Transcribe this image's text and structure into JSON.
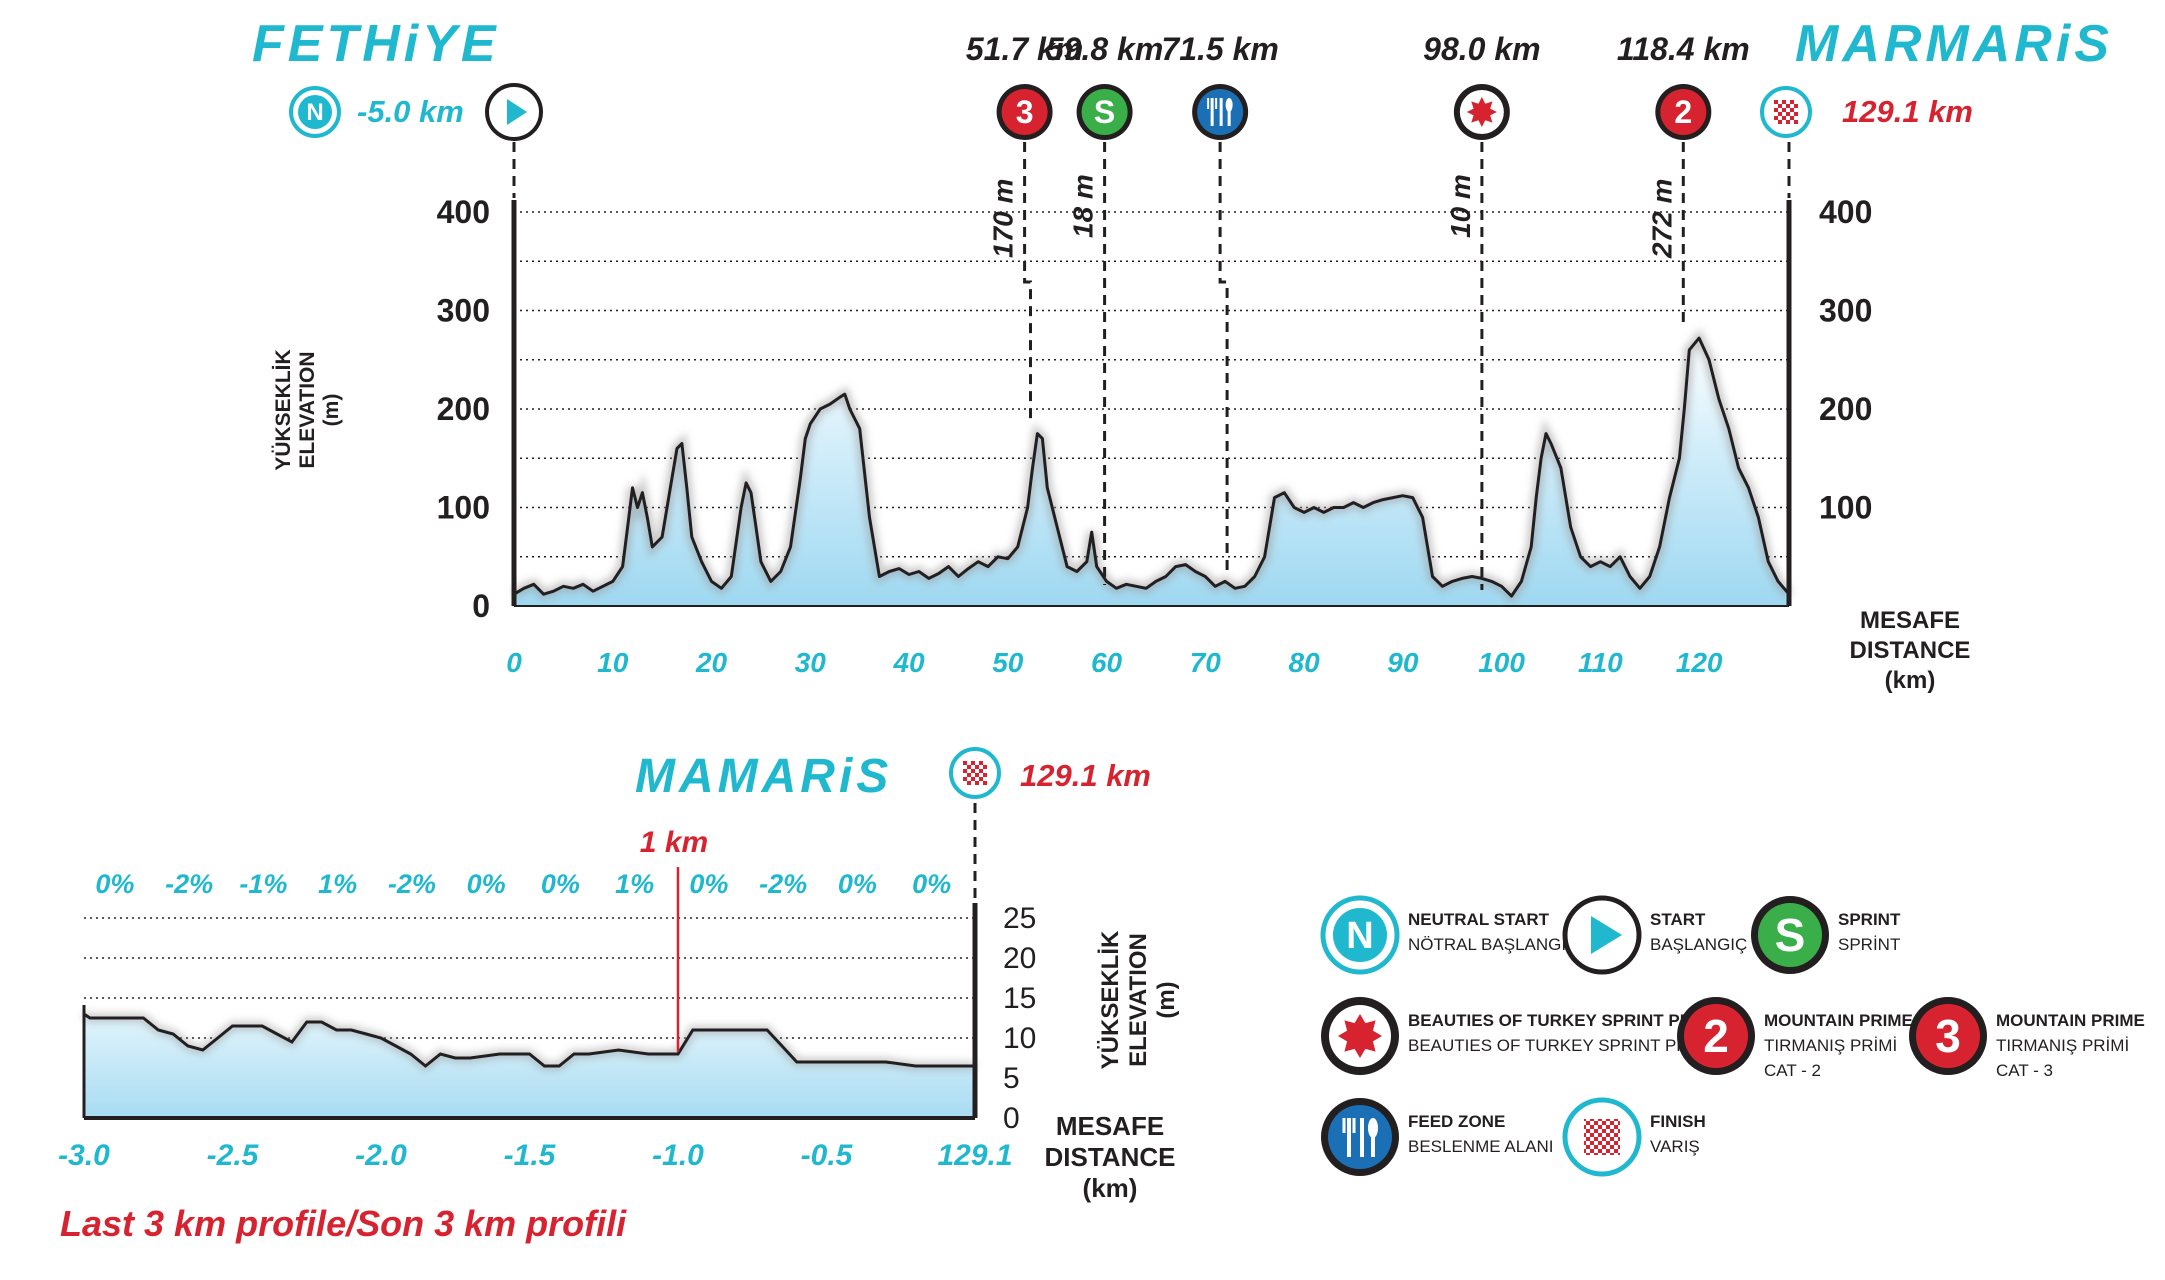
{
  "header": {
    "start_city": "FETHiYE",
    "finish_city": "MARMARiS",
    "neutral_km": "-5.0 km",
    "finish_km": "129.1 km"
  },
  "markers": [
    {
      "km_label": "51.7 km",
      "km": 51.7,
      "icon": "mountain-cat3-icon",
      "symbol": "3",
      "color": "#d7232f",
      "alt_label": "170 m",
      "leader_km": 53,
      "label_x": 43
    },
    {
      "km_label": "59.8 km",
      "km": 59.8,
      "icon": "sprint-icon",
      "symbol": "S",
      "color": "#3aae49",
      "alt_label": "18 m",
      "leader_km": 59.8,
      "label_x": 59.8
    },
    {
      "km_label": "71.5 km",
      "km": 71.5,
      "icon": "feed-zone-icon",
      "symbol": "",
      "color": "#1b6fb5",
      "alt_label": "",
      "leader_km": 72.2,
      "label_x": 76.5
    },
    {
      "km_label": "98.0 km",
      "km": 98.0,
      "icon": "beauties-sprint-icon",
      "symbol": "",
      "color": "#d7232f",
      "alt_label": "10 m",
      "leader_km": 98.0,
      "label_x": 98.0
    },
    {
      "km_label": "118.4 km",
      "km": 118.4,
      "icon": "mountain-cat2-icon",
      "symbol": "2",
      "color": "#d7232f",
      "alt_label": "272 m",
      "leader_km": 118.4,
      "label_x": 118.4
    }
  ],
  "chart_data": [
    {
      "type": "area",
      "ylabel": "YÜKSEKLİK ELEVATION (m)",
      "xlabel": "MESAFE DISTANCE (km)",
      "xlim": [
        0,
        129.1
      ],
      "ylim": [
        0,
        400
      ],
      "x_ticks": [
        "0",
        "10",
        "20",
        "30",
        "40",
        "50",
        "60",
        "70",
        "80",
        "90",
        "100",
        "110",
        "120"
      ],
      "y_ticks": [
        "0",
        "100",
        "200",
        "300",
        "400"
      ],
      "x": [
        0,
        1,
        2,
        3,
        4,
        5,
        6,
        7,
        8,
        9,
        10,
        11,
        11.5,
        12,
        12.5,
        13,
        13.5,
        14,
        15,
        16,
        16.5,
        17,
        17.5,
        18,
        19,
        20,
        21,
        22,
        23,
        23.5,
        24,
        24.5,
        25,
        26,
        27,
        28,
        29,
        29.5,
        30,
        31,
        32,
        33,
        33.5,
        34,
        35,
        36,
        37,
        38,
        39,
        40,
        41,
        42,
        43,
        44,
        45,
        46,
        47,
        48,
        49,
        50,
        51,
        52,
        52.5,
        53,
        53.5,
        54,
        55,
        56,
        57,
        58,
        58.5,
        59,
        60,
        61,
        62,
        63,
        64,
        65,
        66,
        67,
        68,
        69,
        70,
        71,
        72,
        73,
        74,
        75,
        76,
        77,
        78,
        79,
        80,
        81,
        82,
        83,
        84,
        85,
        86,
        87,
        88,
        89,
        90,
        91,
        92,
        93,
        94,
        95,
        96,
        97,
        98,
        99,
        100,
        101,
        102,
        103,
        103.5,
        104,
        104.5,
        105,
        106,
        107,
        108,
        109,
        110,
        111,
        112,
        113,
        114,
        115,
        116,
        117,
        118,
        118.5,
        119,
        120,
        121,
        122,
        123,
        124,
        125,
        126,
        127,
        128,
        129.1
      ],
      "elevation": [
        12,
        18,
        22,
        12,
        15,
        20,
        18,
        22,
        15,
        20,
        25,
        40,
        80,
        120,
        100,
        115,
        90,
        60,
        70,
        130,
        160,
        165,
        120,
        70,
        45,
        25,
        18,
        30,
        100,
        125,
        115,
        80,
        45,
        25,
        35,
        60,
        130,
        170,
        185,
        200,
        205,
        212,
        215,
        200,
        180,
        90,
        30,
        35,
        38,
        32,
        35,
        28,
        33,
        40,
        30,
        38,
        45,
        40,
        50,
        48,
        60,
        100,
        140,
        175,
        170,
        120,
        80,
        40,
        35,
        45,
        75,
        40,
        25,
        18,
        22,
        20,
        18,
        25,
        30,
        40,
        42,
        35,
        30,
        20,
        25,
        18,
        20,
        30,
        50,
        110,
        115,
        100,
        95,
        100,
        95,
        100,
        100,
        105,
        100,
        105,
        108,
        110,
        112,
        110,
        90,
        30,
        20,
        25,
        28,
        30,
        28,
        25,
        20,
        10,
        25,
        60,
        110,
        150,
        175,
        165,
        140,
        80,
        50,
        40,
        45,
        40,
        50,
        30,
        18,
        30,
        60,
        110,
        150,
        200,
        260,
        272,
        250,
        210,
        180,
        140,
        120,
        90,
        45,
        25,
        12,
        15,
        18,
        15
      ],
      "feature_points": [
        {
          "x": 33.5,
          "y": 215
        },
        {
          "x": 53,
          "y": 175
        },
        {
          "x": 103.5,
          "y": 175
        },
        {
          "x": 118.4,
          "y": 272
        }
      ]
    },
    {
      "type": "area",
      "title": "Last 3 km profile/Son 3 km profili",
      "ylabel": "YÜKSEKLİK ELEVATION (m)",
      "xlabel": "MESAFE DISTANCE (km)",
      "xlim": [
        -3.0,
        0
      ],
      "ylim": [
        0,
        25
      ],
      "x_ticks": [
        "-3.0",
        "-2.5",
        "-2.0",
        "-1.5",
        "-1.0",
        "-0.5",
        "129.1"
      ],
      "y_ticks": [
        "0",
        "5",
        "10",
        "15",
        "20",
        "25"
      ],
      "gradients": [
        "0%",
        "-2%",
        "-1%",
        "1%",
        "-2%",
        "0%",
        "0%",
        "1%",
        "0%",
        "-2%",
        "0%",
        "0%"
      ],
      "marker_label": "1 km",
      "marker_x": -1.0,
      "x": [
        -3.0,
        -2.98,
        -2.9,
        -2.8,
        -2.75,
        -2.7,
        -2.65,
        -2.6,
        -2.55,
        -2.5,
        -2.45,
        -2.4,
        -2.35,
        -2.3,
        -2.25,
        -2.2,
        -2.15,
        -2.1,
        -2.05,
        -2.0,
        -1.95,
        -1.9,
        -1.85,
        -1.8,
        -1.75,
        -1.7,
        -1.6,
        -1.5,
        -1.45,
        -1.4,
        -1.35,
        -1.3,
        -1.2,
        -1.1,
        -1.05,
        -1.0,
        -0.95,
        -0.9,
        -0.8,
        -0.7,
        -0.65,
        -0.6,
        -0.5,
        -0.4,
        -0.3,
        -0.2,
        -0.1,
        0
      ],
      "elevation": [
        13,
        12.5,
        12.5,
        12.5,
        11,
        10.5,
        9,
        8.5,
        10,
        11.5,
        11.5,
        11.5,
        10.5,
        9.5,
        12,
        12,
        11,
        11,
        10.5,
        10,
        9,
        8,
        6.5,
        8,
        7.5,
        7.5,
        8,
        8,
        6.5,
        6.5,
        8,
        8,
        8.5,
        8,
        8,
        8,
        11,
        11,
        11,
        11,
        9,
        7,
        7,
        7,
        7,
        6.5,
        6.5,
        6.5
      ]
    }
  ],
  "legend": [
    {
      "icon": "neutral-start-icon",
      "symbol": "N",
      "title": "NEUTRAL START",
      "subtitle": "NÖTRAL BAŞLANGIÇ",
      "cat": ""
    },
    {
      "icon": "start-icon",
      "symbol": "",
      "title": "START",
      "subtitle": "BAŞLANGIÇ",
      "cat": ""
    },
    {
      "icon": "sprint-icon",
      "symbol": "S",
      "title": "SPRINT",
      "subtitle": "SPRİNT",
      "cat": ""
    },
    {
      "icon": "beauties-sprint-icon",
      "symbol": "",
      "title": "BEAUTIES OF TURKEY SPRINT PRIME",
      "subtitle": "BEAUTIES OF TURKEY SPRINT PRIMI",
      "cat": ""
    },
    {
      "icon": "mountain-cat2-icon",
      "symbol": "2",
      "title": "MOUNTAIN PRIME",
      "subtitle": "TIRMANIŞ PRİMİ",
      "cat": "CAT - 2"
    },
    {
      "icon": "mountain-cat3-icon",
      "symbol": "3",
      "title": "MOUNTAIN PRIME",
      "subtitle": "TIRMANIŞ PRİMİ",
      "cat": "CAT - 3"
    },
    {
      "icon": "feed-zone-icon",
      "symbol": "",
      "title": "FEED ZONE",
      "subtitle": "BESLENME ALANI",
      "cat": ""
    },
    {
      "icon": "finish-icon",
      "symbol": "",
      "title": "FINISH",
      "subtitle": "VARIŞ",
      "cat": ""
    }
  ],
  "bottom": {
    "city": "MAMARiS",
    "finish_km": "129.1 km",
    "footnote": "Last 3 km profile/Son 3 km profili"
  },
  "colors": {
    "cyan": "#1fb8cf",
    "red": "#d7232f",
    "green": "#3aae49",
    "blue": "#1b6fb5",
    "area_top": "#d9f2fb",
    "area_bottom": "#a6dcf3"
  }
}
